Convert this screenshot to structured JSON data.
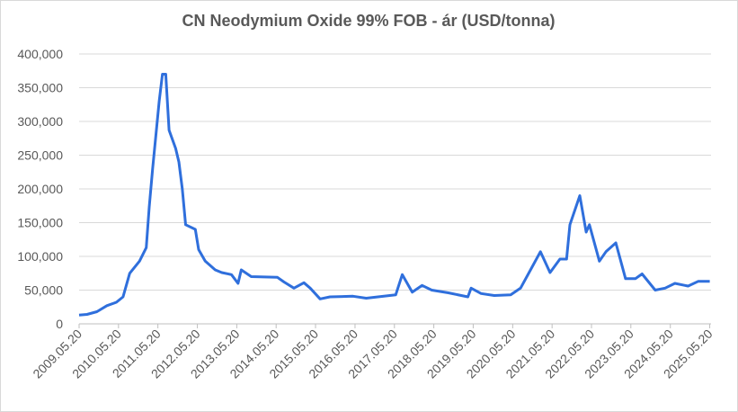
{
  "chart_data": {
    "type": "line",
    "title": "CN Neodymium Oxide 99% FOB - ár (USD/tonna)",
    "x": [
      "2009.05.20",
      "2009.08.01",
      "2009.11.01",
      "2010.02.01",
      "2010.05.01",
      "2010.07.01",
      "2010.09.01",
      "2010.12.01",
      "2011.02.01",
      "2011.03.01",
      "2011.04.01",
      "2011.06.01",
      "2011.07.01",
      "2011.08.01",
      "2011.09.01",
      "2011.11.01",
      "2011.12.01",
      "2012.01.01",
      "2012.02.01",
      "2012.05.01",
      "2012.06.01",
      "2012.08.01",
      "2012.11.01",
      "2013.01.01",
      "2013.04.01",
      "2013.06.01",
      "2013.07.01",
      "2013.10.01",
      "2014.06.01",
      "2014.08.01",
      "2014.11.01",
      "2015.02.01",
      "2015.04.01",
      "2015.07.01",
      "2015.10.01",
      "2016.05.01",
      "2016.09.01",
      "2017.06.01",
      "2017.08.01",
      "2017.11.01",
      "2018.02.01",
      "2018.05.01",
      "2018.10.01",
      "2019.04.01",
      "2019.05.01",
      "2019.08.01",
      "2019.12.01",
      "2020.05.01",
      "2020.08.01",
      "2020.11.01",
      "2021.02.01",
      "2021.05.01",
      "2021.08.01",
      "2021.10.01",
      "2021.11.01",
      "2022.02.01",
      "2022.04.01",
      "2022.05.01",
      "2022.08.01",
      "2022.10.01",
      "2023.01.01",
      "2023.04.01",
      "2023.07.01",
      "2023.09.01",
      "2024.01.01",
      "2024.04.01",
      "2024.07.01",
      "2024.11.01",
      "2025.02.01",
      "2025.05.20"
    ],
    "series": [
      {
        "name": "CN Neodymium Oxide 99% FOB",
        "color": "#2f6fdc",
        "values": [
          13000,
          14000,
          18000,
          27000,
          32000,
          40000,
          75000,
          93000,
          113000,
          173000,
          230000,
          330000,
          370000,
          370000,
          287000,
          260000,
          240000,
          200000,
          147000,
          140000,
          110000,
          93000,
          80000,
          76000,
          73000,
          60000,
          80000,
          70000,
          69000,
          62000,
          53000,
          61000,
          53000,
          37000,
          40000,
          41000,
          38000,
          43000,
          73000,
          47000,
          57000,
          50000,
          46000,
          40000,
          53000,
          45000,
          42000,
          43000,
          53000,
          80000,
          107000,
          76000,
          96000,
          96000,
          147000,
          190000,
          136000,
          147000,
          93000,
          107000,
          120000,
          67000,
          67000,
          74000,
          50000,
          53000,
          60000,
          56000,
          63000,
          63000
        ]
      }
    ],
    "xlim": [
      "2009.05.20",
      "2025.06.01"
    ],
    "xticks": [
      "2009.05.20",
      "2010.05.20",
      "2011.05.20",
      "2012.05.20",
      "2013.05.20",
      "2014.05.20",
      "2015.05.20",
      "2016.05.20",
      "2017.05.20",
      "2018.05.20",
      "2019.05.20",
      "2020.05.20",
      "2021.05.20",
      "2022.05.20",
      "2023.05.20",
      "2024.05.20",
      "2025.05.20"
    ],
    "ylim": [
      0,
      400000
    ],
    "yticks": [
      0,
      {
        "value": 50000,
        "label": "50,000"
      },
      {
        "value": 100000,
        "label": "100,000"
      },
      {
        "value": 150000,
        "label": "150,000"
      },
      {
        "value": 200000,
        "label": "200,000"
      },
      {
        "value": 250000,
        "label": "250,000"
      },
      {
        "value": 300000,
        "label": "300,000"
      },
      {
        "value": 350000,
        "label": "350,000"
      },
      {
        "value": 400000,
        "label": "400,000"
      }
    ],
    "grid": true
  }
}
